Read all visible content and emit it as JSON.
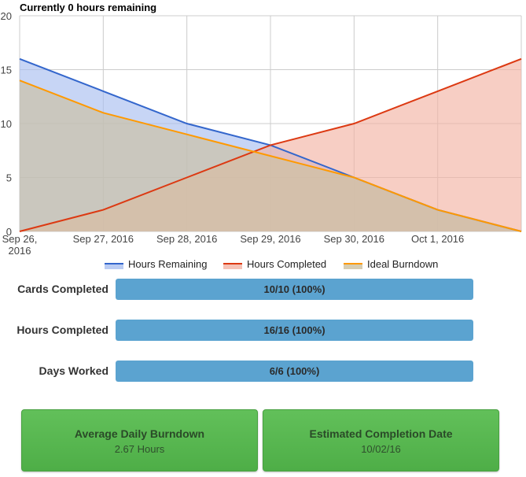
{
  "chart_data": {
    "type": "area",
    "title": "Currently 0 hours remaining",
    "x": [
      "Sep 26, 2016",
      "Sep 27, 2016",
      "Sep 28, 2016",
      "Sep 29, 2016",
      "Sep 30, 2016",
      "Oct 1, 2016",
      ""
    ],
    "x_tick_labels": [
      [
        "Sep 26,",
        "2016"
      ],
      [
        "Sep 27, 2016"
      ],
      [
        "Sep 28, 2016"
      ],
      [
        "Sep 29, 2016"
      ],
      [
        "Sep 30, 2016"
      ],
      [
        "Oct 1, 2016"
      ]
    ],
    "ylim": [
      0,
      20
    ],
    "yticks": [
      0,
      5,
      10,
      15,
      20
    ],
    "grid": true,
    "legend_position": "bottom",
    "series": [
      {
        "name": "Hours Remaining",
        "color": "#3366cc",
        "fill": "#a9bff0",
        "values": [
          16,
          13,
          10,
          8,
          5,
          2,
          0
        ]
      },
      {
        "name": "Hours Completed",
        "color": "#dc3912",
        "fill": "#f3b3a4",
        "values": [
          0,
          2,
          5,
          8,
          10,
          13,
          16
        ]
      },
      {
        "name": "Ideal Burndown",
        "color": "#ff9900",
        "fill": "#ccc0a0",
        "values": [
          14,
          11,
          9,
          7,
          5,
          2,
          0
        ]
      }
    ]
  },
  "stats": [
    {
      "label": "Cards Completed",
      "text": "10/10 (100%)",
      "fraction": 1.0
    },
    {
      "label": "Hours Completed",
      "text": "16/16 (100%)",
      "fraction": 1.0
    },
    {
      "label": "Days Worked",
      "text": "6/6 (100%)",
      "fraction": 1.0
    }
  ],
  "summary": {
    "burndown_title": "Average Daily Burndown",
    "burndown_value": "2.67 Hours",
    "completion_title": "Estimated Completion Date",
    "completion_value": "10/02/16"
  }
}
